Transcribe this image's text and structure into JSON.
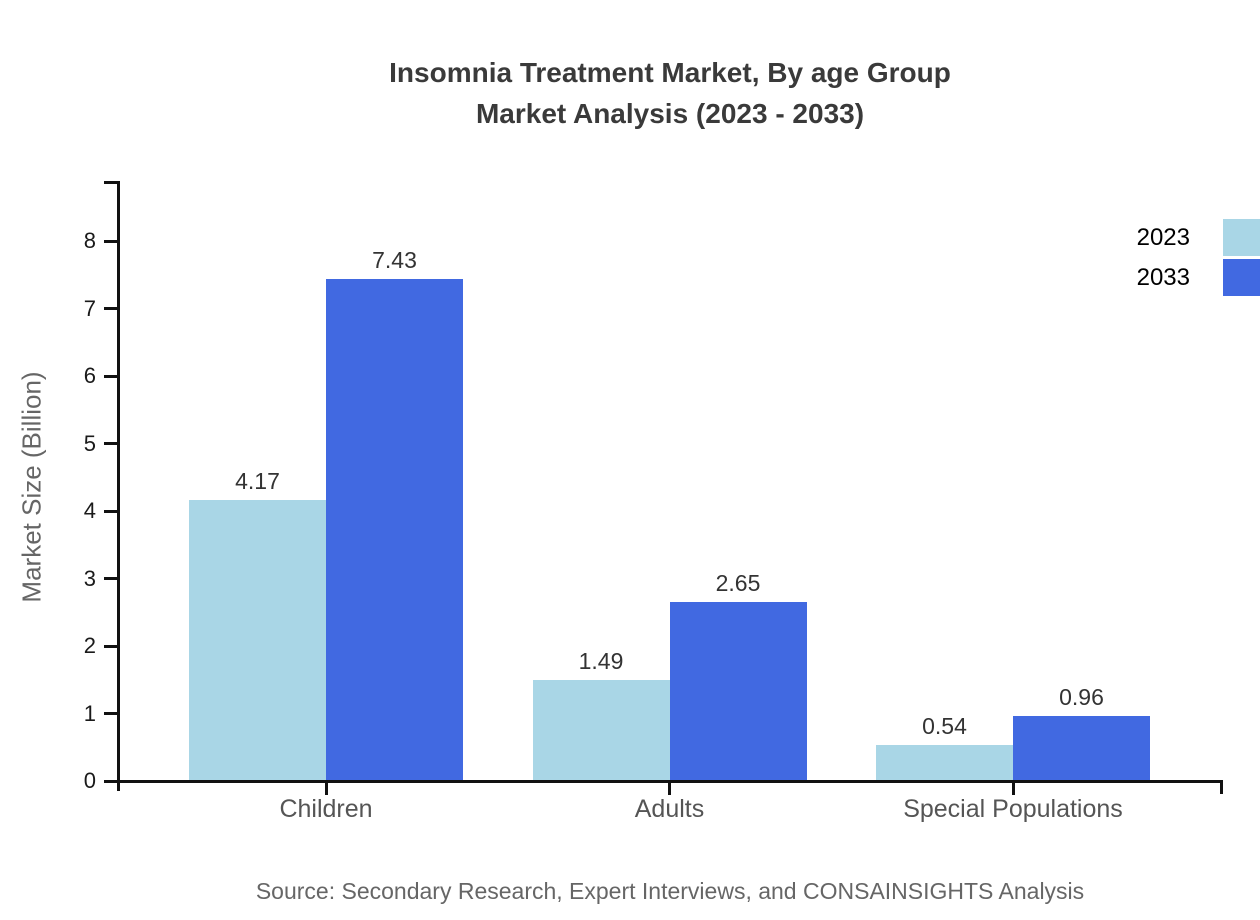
{
  "title": {
    "line1": "Insomnia Treatment Market, By age Group",
    "line2": "Market Analysis (2023 - 2033)"
  },
  "chart_data": {
    "type": "bar",
    "categories": [
      "Children",
      "Adults",
      "Special Populations"
    ],
    "series": [
      {
        "name": "2023",
        "color": "#a9d6e6",
        "values": [
          4.17,
          1.49,
          0.54
        ]
      },
      {
        "name": "2033",
        "color": "#4169e1",
        "values": [
          7.43,
          2.65,
          0.96
        ]
      }
    ],
    "ylabel": "Market Size (Billion)",
    "xlabel": "",
    "ylim": [
      0,
      8.9
    ],
    "yticks": [
      0,
      1,
      2,
      3,
      4,
      5,
      6,
      7,
      8
    ],
    "grid": false,
    "legend_position": "top-right",
    "value_labels_shown": true
  },
  "source": "Source: Secondary Research, Expert Interviews, and CONSAINSIGHTS Analysis",
  "colors": {
    "series_2023": "#a9d6e6",
    "series_2033": "#4169e1",
    "axis": "#111111",
    "title_text": "#3a3a3a",
    "tick_label_text": "#1a1a1a",
    "category_label_text": "#555555",
    "value_label_text": "#333333",
    "muted_text": "#666666",
    "background": "#ffffff"
  }
}
